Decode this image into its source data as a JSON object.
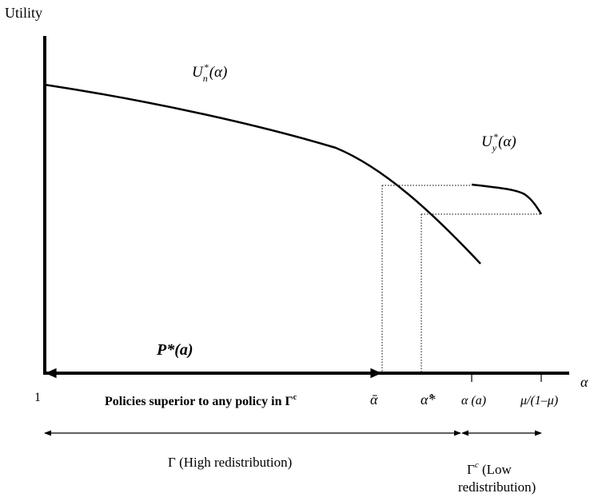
{
  "axes": {
    "y_label": "Utility",
    "x_label": "α"
  },
  "curves": {
    "un": {
      "symbol": "U",
      "sup": "*",
      "sub": "n",
      "arg": "(α)"
    },
    "uy": {
      "symbol": "U",
      "sup": "*",
      "sub": "y",
      "arg": "(α)"
    }
  },
  "ticks": {
    "one": "1",
    "alpha_bar": "ᾱ",
    "alpha_hat_star": "α̂*",
    "alpha_a": "α (a)",
    "mu_ratio": "μ/(1–μ)"
  },
  "labels": {
    "p_star_a": "P*(a)",
    "policies_superior": "Policies superior to any policy in Γ",
    "policies_superior_sup": "c"
  },
  "ranges": {
    "gamma": "Γ (High redistribution)",
    "gamma_c_symbol": "Γ",
    "gamma_c_sup": "c",
    "gamma_c_line1": " (Low",
    "gamma_c_line2": "redistribution)"
  }
}
